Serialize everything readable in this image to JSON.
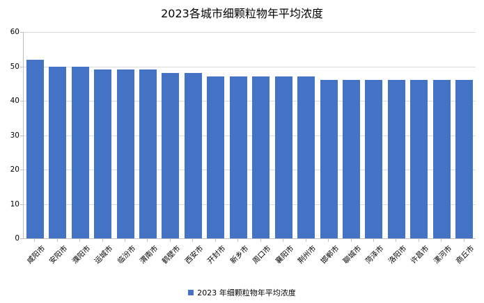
{
  "page": {
    "title": "2023各城市细颗粒物年平均浓度"
  },
  "legend": {
    "label": "2023 年细颗粒物年平均浓度",
    "marker_color": "#4472c4"
  },
  "colors": {
    "bar": "#4472c4",
    "gridline": "#d9d9d9",
    "axis": "#bfbfbf",
    "text": "#000000",
    "background": "#ffffff"
  },
  "chart_data": {
    "type": "bar",
    "title": "2023各城市细颗粒物年平均浓度",
    "categories": [
      "咸阳市",
      "安阳市",
      "濮阳市",
      "运城市",
      "临汾市",
      "渭南市",
      "鹤壁市",
      "西安市",
      "开封市",
      "新乡市",
      "周口市",
      "襄阳市",
      "荆州市",
      "邯郸市",
      "聊城市",
      "菏泽市",
      "洛阳市",
      "许昌市",
      "漯河市",
      "商丘市"
    ],
    "values": [
      52,
      50,
      50,
      49,
      49,
      49,
      48,
      48,
      47,
      47,
      47,
      47,
      47,
      46,
      46,
      46,
      46,
      46,
      46,
      46
    ],
    "xlabel": "",
    "ylabel": "",
    "ylim": [
      0,
      60
    ],
    "yticks": [
      0,
      10,
      20,
      30,
      40,
      50,
      60
    ],
    "grid": true,
    "legend": [
      "2023 年细颗粒物年平均浓度"
    ],
    "legend_position": "bottom",
    "bar_color": "#4472c4",
    "x_label_rotation_deg": 45
  }
}
